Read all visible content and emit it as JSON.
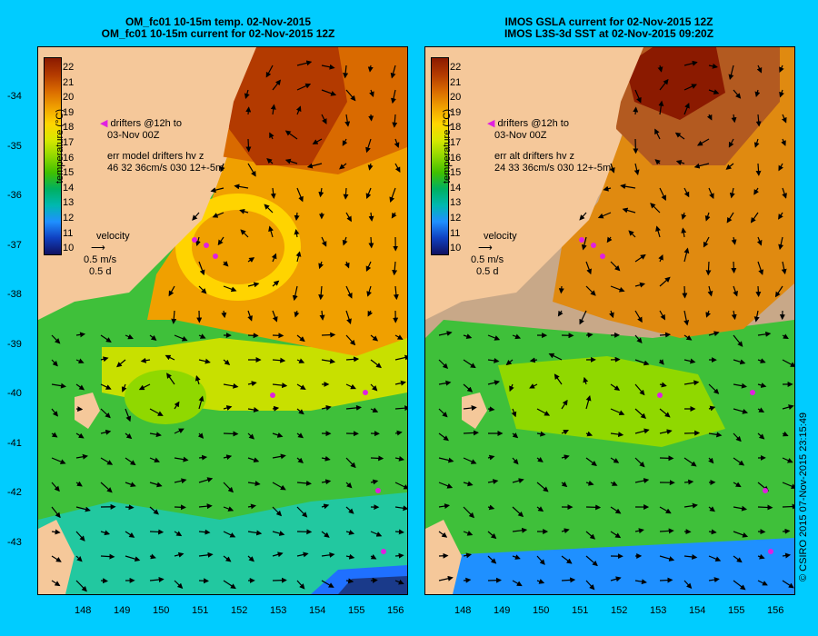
{
  "left_panel": {
    "title_line1": "OM_fc01 10-15m temp. 02-Nov-2015",
    "title_line2": "OM_fc01 10-15m current for 02-Nov-2015 12Z",
    "drifters_line1": "drifters @12h to",
    "drifters_line2": "03-Nov 00Z",
    "err_line1": "err model drifters hv z",
    "err_line2": "46 32 36cm/s 030 12+-5m",
    "velocity_label": "velocity",
    "velocity_scale": "0.5 m/s",
    "velocity_time": "0.5 d"
  },
  "right_panel": {
    "title_line1": "IMOS GSLA current for 02-Nov-2015 12Z",
    "title_line2": "IMOS L3S-3d SST at 02-Nov-2015 09:20Z",
    "drifters_line1": "drifters @12h to",
    "drifters_line2": "03-Nov 00Z",
    "err_line1": "err alt drifters hv z",
    "err_line2": "24 33 36cm/s 030 12+-5m",
    "velocity_label": "velocity",
    "velocity_scale": "0.5 m/s",
    "velocity_time": "0.5 d"
  },
  "colorbar": {
    "title": "temperature (°C)",
    "labels": [
      "22",
      "21",
      "20",
      "19",
      "18",
      "17",
      "16",
      "15",
      "14",
      "13",
      "12",
      "11",
      "10"
    ],
    "colors": [
      "#8b1a00",
      "#b33a00",
      "#d96a00",
      "#f0a000",
      "#ffd400",
      "#d8e800",
      "#90d800",
      "#40c000",
      "#00b060",
      "#00b8b0",
      "#1f90ff",
      "#1040c0",
      "#101060"
    ]
  },
  "y_ticks": [
    "-34",
    "-35",
    "-36",
    "-37",
    "-38",
    "-39",
    "-40",
    "-41",
    "-42",
    "-43"
  ],
  "x_ticks": [
    "148",
    "149",
    "150",
    "151",
    "152",
    "153",
    "154",
    "155",
    "156"
  ],
  "credit": "© CSIRO 2015  07-Nov-2015 23:15:49",
  "colors": {
    "background": "#00ccff",
    "land": "#f5c89a",
    "no_data": "#c8a888",
    "drifter": "#e020e0"
  }
}
